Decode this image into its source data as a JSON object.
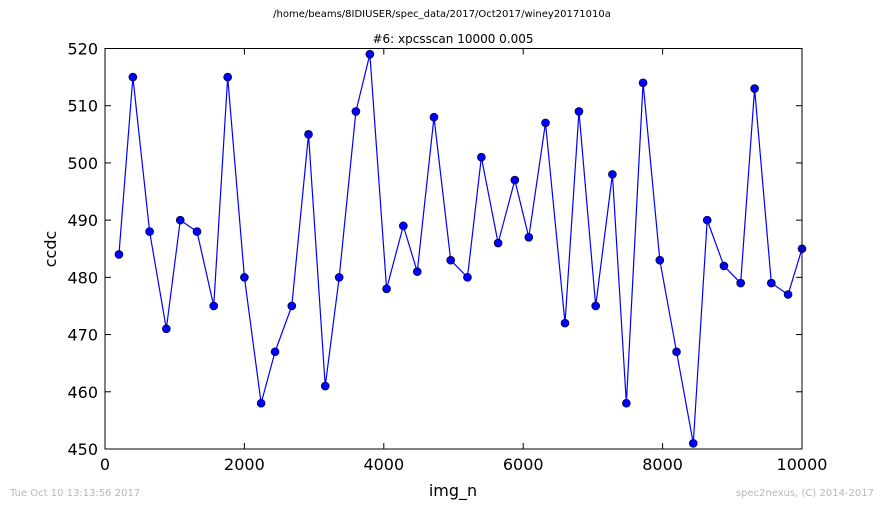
{
  "figure": {
    "supertitle": "/home/beams/8IDIUSER/spec_data/2017/Oct2017/winey20171010a",
    "timestamp": "Tue Oct 10 13:13:56 2017",
    "credit": "spec2nexus, (C) 2014-2017"
  },
  "chart_data": {
    "type": "line",
    "title": "#6: xpcsscan 10000 0.005",
    "xlabel": "img_n",
    "ylabel": "ccdc",
    "xlim": [
      0,
      10000
    ],
    "ylim": [
      450,
      520
    ],
    "xticks": [
      0,
      2000,
      4000,
      6000,
      8000,
      10000
    ],
    "yticks": [
      450,
      460,
      470,
      480,
      490,
      500,
      510,
      520
    ],
    "grid": false,
    "legend": "none",
    "series": [
      {
        "color": "#0000ff",
        "marker": "circle",
        "x": [
          200,
          400,
          640,
          880,
          1080,
          1320,
          1560,
          1760,
          2000,
          2240,
          2440,
          2680,
          2920,
          3160,
          3360,
          3600,
          3800,
          4040,
          4280,
          4480,
          4720,
          4960,
          5200,
          5400,
          5640,
          5880,
          6080,
          6320,
          6600,
          6800,
          7040,
          7280,
          7480,
          7720,
          7960,
          8200,
          8440,
          8640,
          8880,
          9120,
          9320,
          9560,
          9800,
          10000
        ],
        "y": [
          484,
          515,
          488,
          471,
          490,
          488,
          475,
          515,
          480,
          458,
          467,
          475,
          505,
          461,
          480,
          509,
          519,
          478,
          489,
          481,
          508,
          483,
          480,
          501,
          486,
          497,
          487,
          507,
          472,
          509,
          475,
          498,
          458,
          514,
          483,
          467,
          451,
          490,
          482,
          479,
          513,
          479,
          477,
          485
        ]
      }
    ]
  }
}
